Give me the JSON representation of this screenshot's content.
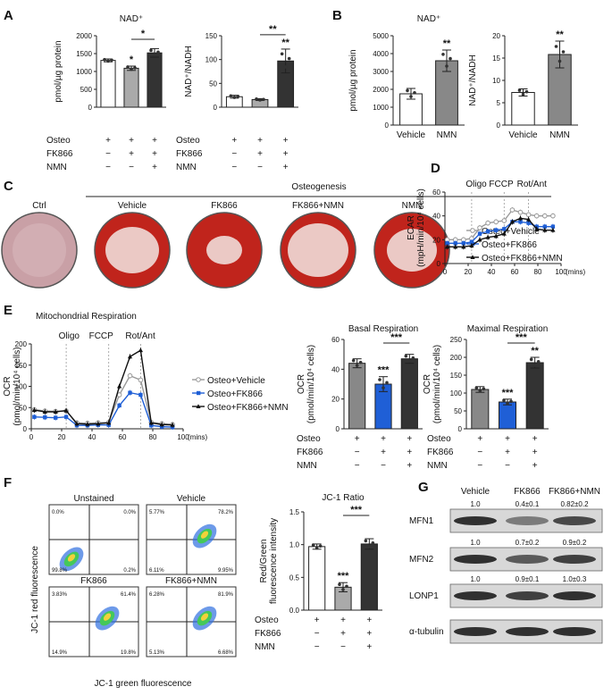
{
  "panel_labels": [
    "A",
    "B",
    "C",
    "D",
    "E",
    "F",
    "G"
  ],
  "A": {
    "left": {
      "title": "NAD⁺",
      "ylabel": "pmol/µg protein",
      "ylim": [
        0,
        2000
      ],
      "ticks": [
        "0",
        "500",
        "1000",
        "1500",
        "2000"
      ],
      "values": [
        1310,
        1090,
        1520
      ],
      "errors": [
        40,
        60,
        120
      ],
      "colors": [
        "#ffffff",
        "#aaaaaa",
        "#333333"
      ],
      "sig_bars": [
        "*"
      ],
      "sig_above": [
        "",
        "*",
        ""
      ]
    },
    "right": {
      "title": "",
      "ylabel": "NAD⁺/NADH",
      "ylim": [
        0,
        150
      ],
      "ticks": [
        "0",
        "50",
        "100",
        "150"
      ],
      "values": [
        22,
        16,
        97
      ],
      "errors": [
        3,
        2,
        25
      ],
      "colors": [
        "#ffffff",
        "#aaaaaa",
        "#333333"
      ],
      "sig_bars": [
        "**"
      ],
      "sig_above": [
        "",
        "",
        "**"
      ]
    },
    "rows": [
      {
        "label": "Osteo",
        "marks": [
          "+",
          "+",
          "+"
        ]
      },
      {
        "label": "FK866",
        "marks": [
          "−",
          "+",
          "+"
        ]
      },
      {
        "label": "NMN",
        "marks": [
          "−",
          "−",
          "+"
        ]
      }
    ]
  },
  "B": {
    "left": {
      "title": "NAD⁺",
      "ylabel": "pmol/µg protein",
      "ylim": [
        0,
        5000
      ],
      "ticks": [
        "0",
        "1000",
        "2000",
        "3000",
        "4000",
        "5000"
      ],
      "values": [
        1750,
        3600
      ],
      "errors": [
        300,
        600
      ],
      "colors": [
        "#ffffff",
        "#888888"
      ],
      "sig_above": [
        "",
        "**"
      ],
      "xlabels": [
        "Vehicle",
        "NMN"
      ]
    },
    "right": {
      "title": "",
      "ylabel": "NAD⁺/NADH",
      "ylim": [
        0,
        20
      ],
      "ticks": [
        "0",
        "5",
        "10",
        "15",
        "20"
      ],
      "values": [
        7.3,
        15.8
      ],
      "errors": [
        0.8,
        3
      ],
      "colors": [
        "#ffffff",
        "#888888"
      ],
      "sig_above": [
        "",
        "**"
      ],
      "xlabels": [
        "Vehicle",
        "NMN"
      ]
    }
  },
  "C": {
    "header": "Osteogenesis",
    "labels": [
      "Ctrl",
      "Vehicle",
      "FK866",
      "FK866+NMN",
      "NMN"
    ]
  },
  "D": {
    "line": {
      "title": "Mitochondrial Respiration",
      "ylabel": "OCR",
      "ylabel2": "(pmol/min/10⁴ cells)",
      "xlabel": "(mins)",
      "ylim": [
        0,
        200
      ],
      "ticks": [
        "0",
        "50",
        "100",
        "150",
        "200"
      ],
      "xticks": [
        "0",
        "20",
        "40",
        "60",
        "80",
        "100"
      ],
      "injections": [
        "Oligo",
        "FCCP",
        "Rot/Ant"
      ],
      "series": [
        {
          "name": "Osteo+Vehicle",
          "color": "#999999",
          "marker": "circle",
          "x": [
            2,
            9,
            16,
            23,
            30,
            37,
            44,
            51,
            58,
            65,
            72,
            79,
            86,
            93
          ],
          "y": [
            45,
            42,
            41,
            42,
            14,
            13,
            14,
            15,
            80,
            125,
            115,
            15,
            12,
            10
          ]
        },
        {
          "name": "Osteo+FK866",
          "color": "#1f5fd6",
          "marker": "square",
          "x": [
            2,
            9,
            16,
            23,
            30,
            37,
            44,
            51,
            58,
            65,
            72,
            79,
            86,
            93
          ],
          "y": [
            28,
            27,
            26,
            28,
            8,
            8,
            9,
            9,
            55,
            85,
            80,
            8,
            5,
            4
          ]
        },
        {
          "name": "Osteo+FK866+NMN",
          "color": "#111111",
          "marker": "triangle",
          "x": [
            2,
            9,
            16,
            23,
            30,
            37,
            44,
            51,
            58,
            65,
            72,
            79,
            86,
            93
          ],
          "y": [
            44,
            40,
            40,
            43,
            12,
            11,
            12,
            14,
            100,
            170,
            185,
            14,
            10,
            9
          ]
        }
      ]
    },
    "basal": {
      "title": "Basal Respiration",
      "ylabel": "OCR",
      "ylabel2": "(pmol/min/10⁴ cells)",
      "ylim": [
        0,
        60
      ],
      "ticks": [
        "0",
        "20",
        "40",
        "60"
      ],
      "values": [
        44,
        30,
        47
      ],
      "errors": [
        3,
        5,
        3
      ],
      "colors": [
        "#888888",
        "#1f5fd6",
        "#333333"
      ],
      "sig_bars": [
        "***"
      ],
      "sig_above": [
        "",
        "***",
        ""
      ]
    },
    "maximal": {
      "title": "Maximal Respiration",
      "ylabel": "OCR",
      "ylabel2": "(pmol/min/10⁴ cells)",
      "ylim": [
        0,
        250
      ],
      "ticks": [
        "0",
        "50",
        "100",
        "150",
        "200",
        "250"
      ],
      "values": [
        110,
        75,
        185
      ],
      "errors": [
        8,
        8,
        15
      ],
      "colors": [
        "#888888",
        "#1f5fd6",
        "#333333"
      ],
      "sig_bars": [
        "***"
      ],
      "sig_above": [
        "",
        "***",
        "**"
      ]
    },
    "rows": [
      {
        "label": "Osteo",
        "marks": [
          "+",
          "+",
          "+"
        ]
      },
      {
        "label": "FK866",
        "marks": [
          "−",
          "+",
          "+"
        ]
      },
      {
        "label": "NMN",
        "marks": [
          "−",
          "−",
          "+"
        ]
      }
    ]
  },
  "E": {
    "line": {
      "ylabel": "ECAR",
      "ylabel2": "(mpH/min/10⁴ cells)",
      "xlabel": "(mins)",
      "ylim": [
        0,
        60
      ],
      "ticks": [
        "0",
        "20",
        "40",
        "60"
      ],
      "xticks": [
        "0",
        "20",
        "40",
        "60",
        "80",
        "100"
      ],
      "injections": [
        "Oligo",
        "FCCP",
        "Rot/Ant"
      ],
      "series": [
        {
          "name": "Osteo+Vehicle",
          "color": "#999999",
          "marker": "circle",
          "x": [
            2,
            9,
            16,
            23,
            30,
            37,
            44,
            51,
            58,
            65,
            72,
            79,
            86,
            93
          ],
          "y": [
            20,
            20,
            20,
            21,
            30,
            34,
            35,
            36,
            45,
            43,
            41,
            40,
            40,
            40
          ]
        },
        {
          "name": "Osteo+FK866",
          "color": "#1f5fd6",
          "marker": "square",
          "x": [
            2,
            9,
            16,
            23,
            30,
            37,
            44,
            51,
            58,
            65,
            72,
            79,
            86,
            93
          ],
          "y": [
            17,
            17,
            17,
            18,
            25,
            27,
            28,
            29,
            35,
            35,
            34,
            31,
            31,
            31
          ]
        },
        {
          "name": "Osteo+FK866+NMN",
          "color": "#111111",
          "marker": "triangle",
          "x": [
            2,
            9,
            16,
            23,
            30,
            37,
            44,
            51,
            58,
            65,
            72,
            79,
            86,
            93
          ],
          "y": [
            14,
            14,
            14,
            15,
            20,
            22,
            23,
            25,
            35,
            38,
            37,
            29,
            28,
            28
          ]
        }
      ]
    }
  },
  "F": {
    "ylabel": "JC-1 red fluorescence",
    "xlabel": "JC-1 green fluorescence",
    "plots": [
      {
        "title": "Unstained",
        "q": [
          "0.0%",
          "0.0%",
          "99.8%",
          "0.2%"
        ]
      },
      {
        "title": "Vehicle",
        "q": [
          "5.77%",
          "78.2%",
          "6.11%",
          "9.95%"
        ]
      },
      {
        "title": "FK866",
        "q": [
          "3.83%",
          "61.4%",
          "14.9%",
          "19.8%"
        ]
      },
      {
        "title": "FK866+NMN",
        "q": [
          "6.28%",
          "81.9%",
          "5.13%",
          "6.68%"
        ]
      }
    ],
    "bar": {
      "title": "JC-1 Ratio",
      "ylabel": "Red/Green",
      "ylabel2": "fluorescence intensity",
      "ylim": [
        0,
        1.5
      ],
      "ticks": [
        "0.0",
        "0.5",
        "1.0",
        "1.5"
      ],
      "values": [
        0.97,
        0.35,
        1.01
      ],
      "errors": [
        0.04,
        0.07,
        0.08
      ],
      "colors": [
        "#ffffff",
        "#aaaaaa",
        "#333333"
      ],
      "sig_bars": [
        "***"
      ],
      "sig_above": [
        "",
        "***",
        ""
      ]
    },
    "rows": [
      {
        "label": "Osteo",
        "marks": [
          "+",
          "+",
          "+"
        ]
      },
      {
        "label": "FK866",
        "marks": [
          "−",
          "+",
          "+"
        ]
      },
      {
        "label": "NMN",
        "marks": [
          "−",
          "−",
          "+"
        ]
      }
    ]
  },
  "G": {
    "columns": [
      "Vehicle",
      "FK866",
      "FK866+NMN"
    ],
    "blots": [
      {
        "name": "MFN1",
        "values": [
          "1.0",
          "0.4±0.1",
          "0.82±0.2"
        ]
      },
      {
        "name": "MFN2",
        "values": [
          "1.0",
          "0.7±0.2",
          "0.9±0.2"
        ]
      },
      {
        "name": "LONP1",
        "values": [
          "1.0",
          "0.9±0.1",
          "1.0±0.3"
        ]
      },
      {
        "name": "α-tubulin",
        "values": [
          "",
          "",
          ""
        ]
      }
    ]
  },
  "colors": {
    "dish_red": "#c0241c",
    "dish_pink": "#c9a0a6",
    "blot_bg": "#d8d8d8",
    "band": "#303030"
  }
}
